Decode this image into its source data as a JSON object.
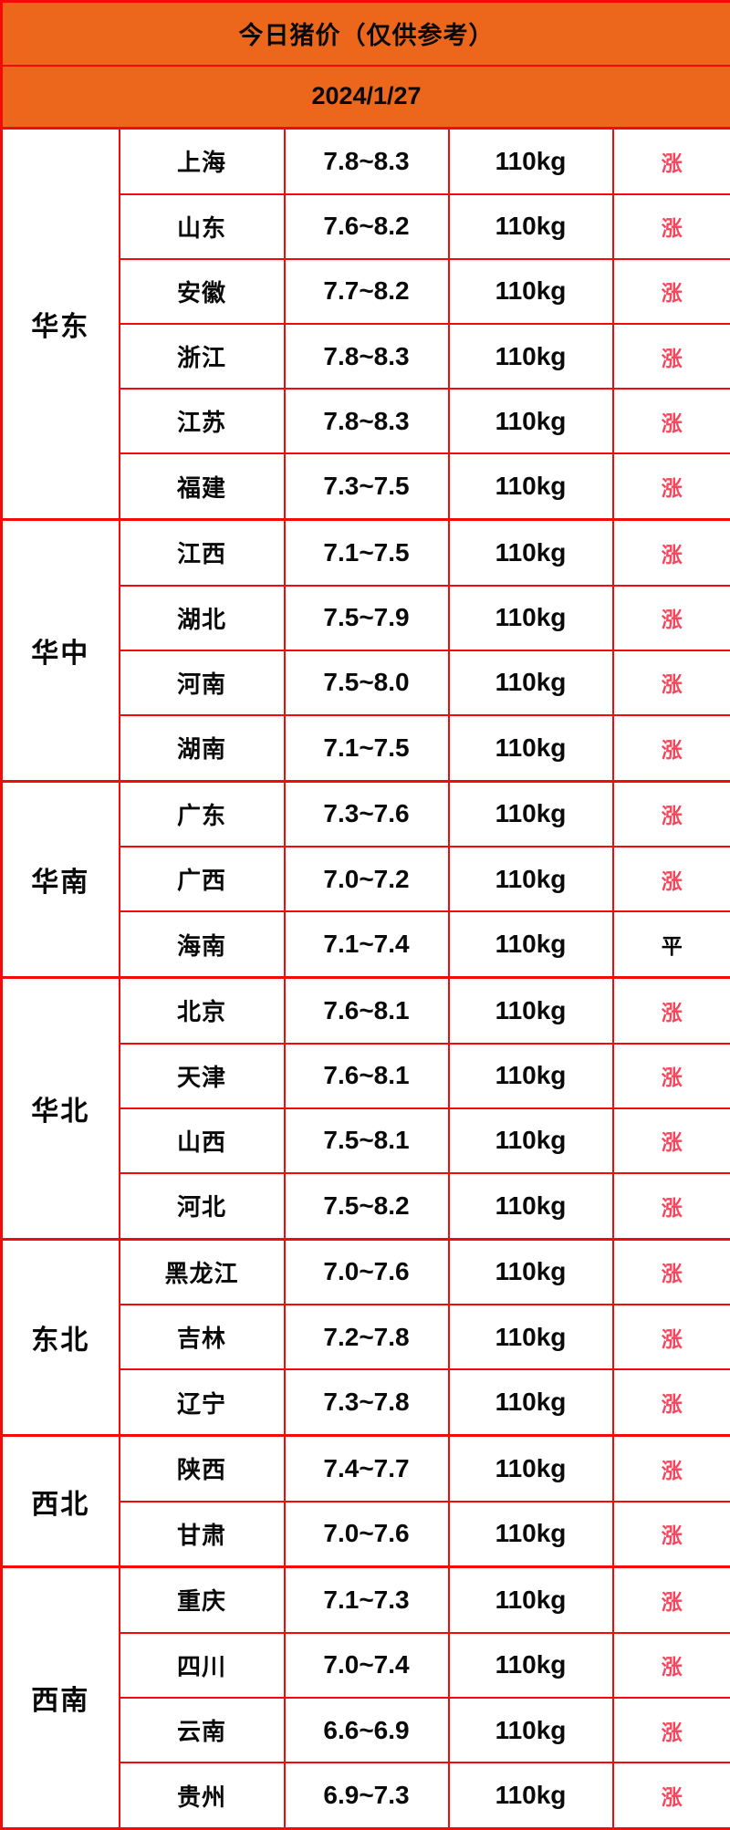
{
  "header": {
    "title": "今日猪价（仅供参考）",
    "date": "2024/1/27"
  },
  "colors": {
    "header_bg": "#EC661C",
    "border_red": "#F50A0A",
    "trend_up_red": "#F8455B",
    "trend_flat_black": "#000000"
  },
  "trend_labels": {
    "up": "涨",
    "flat": "平"
  },
  "regions": [
    {
      "name": "华东",
      "rows": [
        {
          "province": "上海",
          "price": "7.8~8.3",
          "weight": "110kg",
          "trend": "涨",
          "trend_type": "up"
        },
        {
          "province": "山东",
          "price": "7.6~8.2",
          "weight": "110kg",
          "trend": "涨",
          "trend_type": "up"
        },
        {
          "province": "安徽",
          "price": "7.7~8.2",
          "weight": "110kg",
          "trend": "涨",
          "trend_type": "up"
        },
        {
          "province": "浙江",
          "price": "7.8~8.3",
          "weight": "110kg",
          "trend": "涨",
          "trend_type": "up"
        },
        {
          "province": "江苏",
          "price": "7.8~8.3",
          "weight": "110kg",
          "trend": "涨",
          "trend_type": "up"
        },
        {
          "province": "福建",
          "price": "7.3~7.5",
          "weight": "110kg",
          "trend": "涨",
          "trend_type": "up"
        }
      ]
    },
    {
      "name": "华中",
      "rows": [
        {
          "province": "江西",
          "price": "7.1~7.5",
          "weight": "110kg",
          "trend": "涨",
          "trend_type": "up"
        },
        {
          "province": "湖北",
          "price": "7.5~7.9",
          "weight": "110kg",
          "trend": "涨",
          "trend_type": "up"
        },
        {
          "province": "河南",
          "price": "7.5~8.0",
          "weight": "110kg",
          "trend": "涨",
          "trend_type": "up"
        },
        {
          "province": "湖南",
          "price": "7.1~7.5",
          "weight": "110kg",
          "trend": "涨",
          "trend_type": "up"
        }
      ]
    },
    {
      "name": "华南",
      "rows": [
        {
          "province": "广东",
          "price": "7.3~7.6",
          "weight": "110kg",
          "trend": "涨",
          "trend_type": "up"
        },
        {
          "province": "广西",
          "price": "7.0~7.2",
          "weight": "110kg",
          "trend": "涨",
          "trend_type": "up"
        },
        {
          "province": "海南",
          "price": "7.1~7.4",
          "weight": "110kg",
          "trend": "平",
          "trend_type": "flat"
        }
      ]
    },
    {
      "name": "华北",
      "rows": [
        {
          "province": "北京",
          "price": "7.6~8.1",
          "weight": "110kg",
          "trend": "涨",
          "trend_type": "up"
        },
        {
          "province": "天津",
          "price": "7.6~8.1",
          "weight": "110kg",
          "trend": "涨",
          "trend_type": "up"
        },
        {
          "province": "山西",
          "price": "7.5~8.1",
          "weight": "110kg",
          "trend": "涨",
          "trend_type": "up"
        },
        {
          "province": "河北",
          "price": "7.5~8.2",
          "weight": "110kg",
          "trend": "涨",
          "trend_type": "up"
        }
      ]
    },
    {
      "name": "东北",
      "rows": [
        {
          "province": "黑龙江",
          "price": "7.0~7.6",
          "weight": "110kg",
          "trend": "涨",
          "trend_type": "up"
        },
        {
          "province": "吉林",
          "price": "7.2~7.8",
          "weight": "110kg",
          "trend": "涨",
          "trend_type": "up"
        },
        {
          "province": "辽宁",
          "price": "7.3~7.8",
          "weight": "110kg",
          "trend": "涨",
          "trend_type": "up"
        }
      ]
    },
    {
      "name": "西北",
      "rows": [
        {
          "province": "陕西",
          "price": "7.4~7.7",
          "weight": "110kg",
          "trend": "涨",
          "trend_type": "up"
        },
        {
          "province": "甘肃",
          "price": "7.0~7.6",
          "weight": "110kg",
          "trend": "涨",
          "trend_type": "up"
        }
      ]
    },
    {
      "name": "西南",
      "rows": [
        {
          "province": "重庆",
          "price": "7.1~7.3",
          "weight": "110kg",
          "trend": "涨",
          "trend_type": "up"
        },
        {
          "province": "四川",
          "price": "7.0~7.4",
          "weight": "110kg",
          "trend": "涨",
          "trend_type": "up"
        },
        {
          "province": "云南",
          "price": "6.6~6.9",
          "weight": "110kg",
          "trend": "涨",
          "trend_type": "up"
        },
        {
          "province": "贵州",
          "price": "6.9~7.3",
          "weight": "110kg",
          "trend": "涨",
          "trend_type": "up"
        }
      ]
    }
  ]
}
